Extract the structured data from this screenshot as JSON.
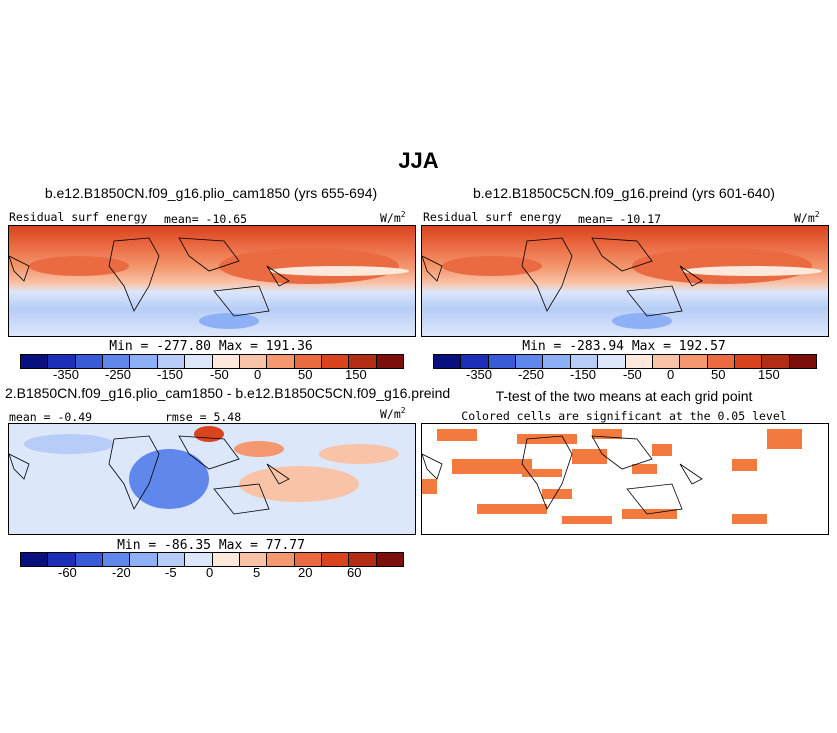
{
  "figure": {
    "title": "JJA"
  },
  "colors": {
    "scale": [
      "#08107d",
      "#1d2fb9",
      "#3a5bd8",
      "#6088ec",
      "#8db0f6",
      "#b7cdf7",
      "#dce7fa",
      "#fde8dc",
      "#f9c3a8",
      "#f4996f",
      "#ea6a42",
      "#d9441f",
      "#b32c14",
      "#7d0f0b"
    ],
    "land_outline": "#000000",
    "significance": "#f27a3f"
  },
  "chart_data": [
    {
      "type": "heatmap",
      "panel": "top-left",
      "title": "b.e12.B1850CN.f09_g16.plio_cam1850 (yrs 655-694)",
      "left_label": "Residual surf energy",
      "center_label": "mean= -10.65",
      "unit_base": "W/m",
      "unit_exp": "2",
      "stats": "Min = -277.80 Max = 191.36",
      "min": -277.8,
      "max": 191.36,
      "mean": -10.65,
      "contour_levels": [
        -350,
        -300,
        -250,
        -200,
        -150,
        -100,
        -50,
        0,
        25,
        50,
        100,
        150,
        200
      ],
      "colorbar_ticks": [
        "-350",
        "-250",
        "-150",
        "-50",
        "0",
        "50",
        "150"
      ]
    },
    {
      "type": "heatmap",
      "panel": "top-right",
      "title": "b.e12.B1850C5CN.f09_g16.preind (yrs 601-640)",
      "left_label": "Residual surf energy",
      "center_label": "mean= -10.17",
      "unit_base": "W/m",
      "unit_exp": "2",
      "stats": "Min = -283.94 Max = 192.57",
      "min": -283.94,
      "max": 192.57,
      "mean": -10.17,
      "contour_levels": [
        -350,
        -300,
        -250,
        -200,
        -150,
        -100,
        -50,
        0,
        25,
        50,
        100,
        150,
        200
      ],
      "colorbar_ticks": [
        "-350",
        "-250",
        "-150",
        "-50",
        "0",
        "50",
        "150"
      ]
    },
    {
      "type": "heatmap",
      "panel": "bottom-left",
      "title": "2.B1850CN.f09_g16.plio_cam1850 - b.e12.B1850C5CN.f09_g16.preind",
      "left_label": "mean =  -0.49",
      "center_label": "rmse =   5.48",
      "unit_base": "W/m",
      "unit_exp": "2",
      "stats": "Min = -86.35 Max =  77.77",
      "min": -86.35,
      "max": 77.77,
      "mean": -0.49,
      "rmse": 5.48,
      "contour_levels": [
        -80,
        -60,
        -40,
        -20,
        -10,
        -5,
        -1,
        0,
        1,
        5,
        10,
        20,
        40,
        60,
        80
      ],
      "colorbar_ticks": [
        "-60",
        "-20",
        "-5",
        "0",
        "5",
        "20",
        "60"
      ]
    },
    {
      "type": "heatmap",
      "panel": "bottom-right",
      "title": "T-test of the two means at each grid point",
      "subtitle": "Colored cells are significant at the 0.05 level",
      "significance_level": 0.05
    }
  ]
}
